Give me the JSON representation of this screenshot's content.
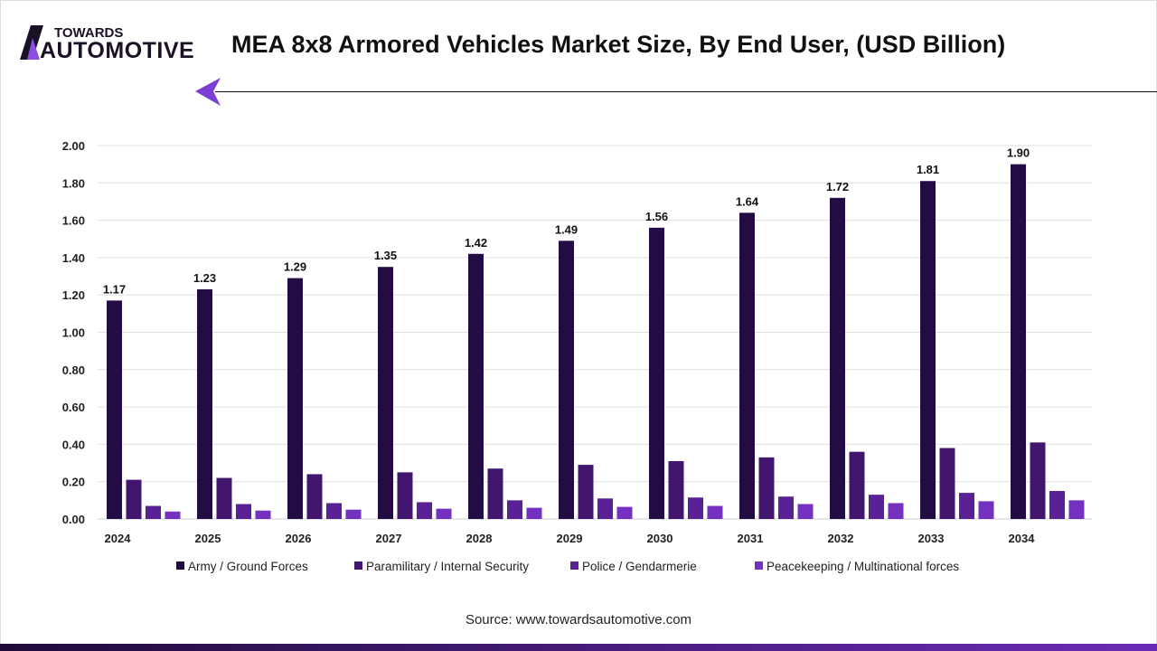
{
  "header": {
    "logo_top": "TOWARDS",
    "logo_bottom": "AUTOMOTIVE",
    "title": "MEA 8x8 Armored Vehicles Market Size, By End User, (USD Billion)"
  },
  "source": "Source: www.towardsautomotive.com",
  "chart_data": {
    "type": "bar",
    "title": "MEA 8x8 Armored Vehicles Market Size, By End User, (USD Billion)",
    "xlabel": "",
    "ylabel": "",
    "ylim": [
      0,
      2
    ],
    "yticks": [
      "0.00",
      "0.20",
      "0.40",
      "0.60",
      "0.80",
      "1.00",
      "1.20",
      "1.40",
      "1.60",
      "1.80",
      "2.00"
    ],
    "grid": true,
    "legend": "bottom",
    "categories": [
      "2024",
      "2025",
      "2026",
      "2027",
      "2028",
      "2029",
      "2030",
      "2031",
      "2032",
      "2033",
      "2034"
    ],
    "series": [
      {
        "name": "Army / Ground Forces",
        "color": "#230b43",
        "values": [
          1.17,
          1.23,
          1.29,
          1.35,
          1.42,
          1.49,
          1.56,
          1.64,
          1.72,
          1.81,
          1.9
        ],
        "labels": [
          "1.17",
          "1.23",
          "1.29",
          "1.35",
          "1.42",
          "1.49",
          "1.56",
          "1.64",
          "1.72",
          "1.81",
          "1.90"
        ]
      },
      {
        "name": "Paramilitary / Internal Security",
        "color": "#42166e",
        "values": [
          0.21,
          0.22,
          0.24,
          0.25,
          0.27,
          0.29,
          0.31,
          0.33,
          0.36,
          0.38,
          0.41
        ]
      },
      {
        "name": "Police / Gendarmerie",
        "color": "#5a2096",
        "values": [
          0.07,
          0.08,
          0.085,
          0.09,
          0.1,
          0.11,
          0.115,
          0.12,
          0.13,
          0.14,
          0.15
        ]
      },
      {
        "name": "Peacekeeping / Multinational forces",
        "color": "#7430be",
        "values": [
          0.04,
          0.045,
          0.05,
          0.055,
          0.06,
          0.065,
          0.07,
          0.08,
          0.085,
          0.095,
          0.1
        ]
      }
    ]
  }
}
